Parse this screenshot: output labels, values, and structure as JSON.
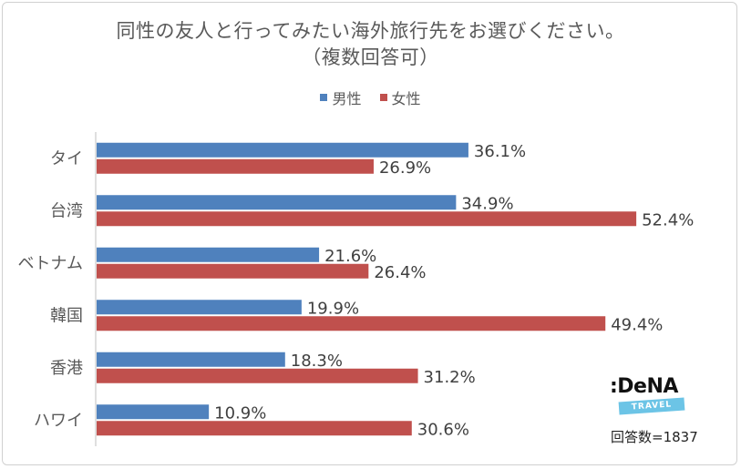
{
  "chart_data": {
    "type": "bar",
    "orientation": "horizontal",
    "title": "同性の友人と行ってみたい海外旅行先をお選びください。",
    "subtitle": "（複数回答可）",
    "categories": [
      "タイ",
      "台湾",
      "ベトナム",
      "韓国",
      "香港",
      "ハワイ"
    ],
    "series": [
      {
        "name": "男性",
        "color": "#4f81bd",
        "values": [
          36.1,
          34.9,
          21.6,
          19.9,
          18.3,
          10.9
        ]
      },
      {
        "name": "女性",
        "color": "#c0504d",
        "values": [
          26.9,
          52.4,
          26.4,
          49.4,
          31.2,
          30.6
        ]
      }
    ],
    "value_labels": {
      "男性": [
        "36.1%",
        "34.9%",
        "21.6%",
        "19.9%",
        "18.3%",
        "10.9%"
      ],
      "女性": [
        "26.9%",
        "52.4%",
        "26.4%",
        "49.4%",
        "31.2%",
        "30.6%"
      ]
    },
    "xlim": [
      0,
      60
    ],
    "grid": false,
    "legend_position": "top"
  },
  "logo": {
    "word": ":DeNA",
    "tag": "TRAVEL"
  },
  "note": "回答数=1837"
}
